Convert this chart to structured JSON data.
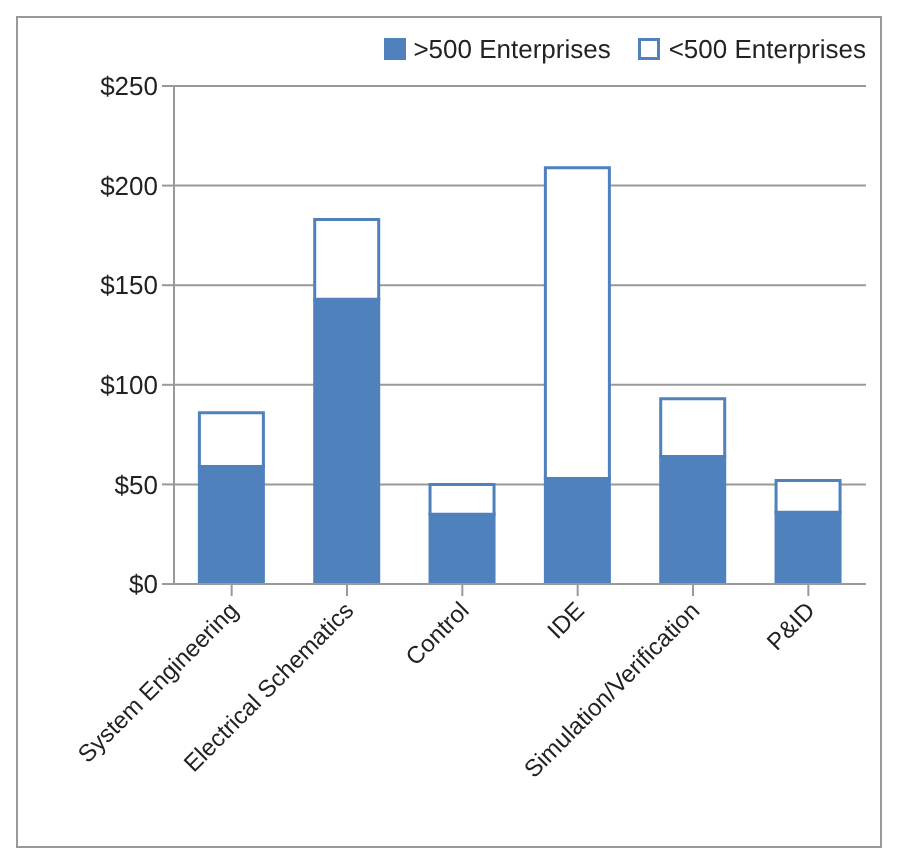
{
  "chart_data": {
    "type": "bar",
    "stacked": true,
    "categories": [
      "System Engineering",
      "Electrical Schematics",
      "Control",
      "IDE",
      "Simulation/Verification",
      "P&ID"
    ],
    "series": [
      {
        "name": ">500 Enterprises",
        "color": "#4f81bd",
        "values": [
          59,
          143,
          35,
          53,
          64,
          36
        ]
      },
      {
        "name": "<500 Enterprises",
        "color": "#ffffff",
        "values": [
          27,
          40,
          15,
          156,
          29,
          16
        ]
      }
    ],
    "ylim": [
      0,
      250
    ],
    "yticks": [
      {
        "value": 0,
        "label": "$0"
      },
      {
        "value": 50,
        "label": "$50"
      },
      {
        "value": 100,
        "label": "$100"
      },
      {
        "value": 150,
        "label": "$150"
      },
      {
        "value": 200,
        "label": "$200"
      },
      {
        "value": 250,
        "label": "$250"
      }
    ],
    "grid": "y",
    "legend": "top right"
  }
}
